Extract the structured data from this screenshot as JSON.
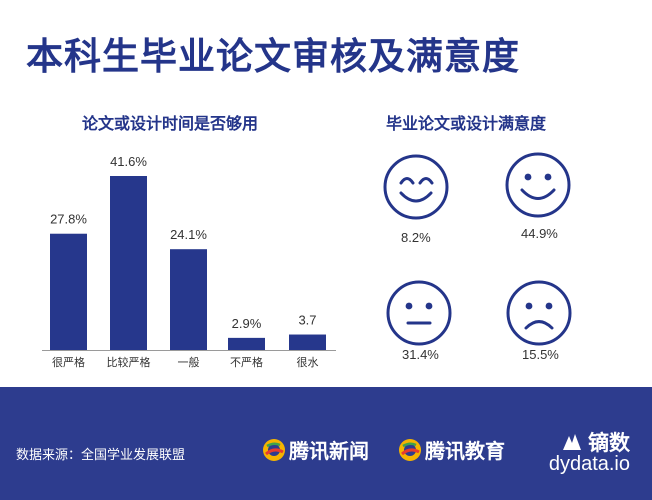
{
  "page": {
    "title": "本科生毕业论文审核及满意度"
  },
  "colors": {
    "accent": "#24358a",
    "bar": "#26378c",
    "footer_bg": "#2d3c8e"
  },
  "chart_data": [
    {
      "type": "bar",
      "title": "论文或设计时间是否够用",
      "categories": [
        "很严格",
        "比较严格",
        "一般",
        "不严格",
        "很水"
      ],
      "values": [
        27.8,
        41.6,
        24.1,
        2.9,
        3.7
      ],
      "data_labels": [
        "27.8%",
        "41.6%",
        "24.1%",
        "2.9%",
        "3.7"
      ],
      "ylim": [
        0,
        41.6
      ]
    },
    {
      "type": "icon-grid",
      "title": "毕业论文或设计满意度",
      "items": [
        {
          "icon": "very-happy-face-icon",
          "label": "8.2%",
          "value": 8.2
        },
        {
          "icon": "smile-face-icon",
          "label": "44.9%",
          "value": 44.9
        },
        {
          "icon": "neutral-face-icon",
          "label": "31.4%",
          "value": 31.4
        },
        {
          "icon": "sad-face-icon",
          "label": "15.5%",
          "value": 15.5
        }
      ]
    }
  ],
  "footer": {
    "source": "数据来源：全国学业发展联盟",
    "brand1": "腾讯新闻",
    "brand2": "腾讯教育",
    "dydata_name": "镝数",
    "dydata_url": "dydata.io"
  }
}
